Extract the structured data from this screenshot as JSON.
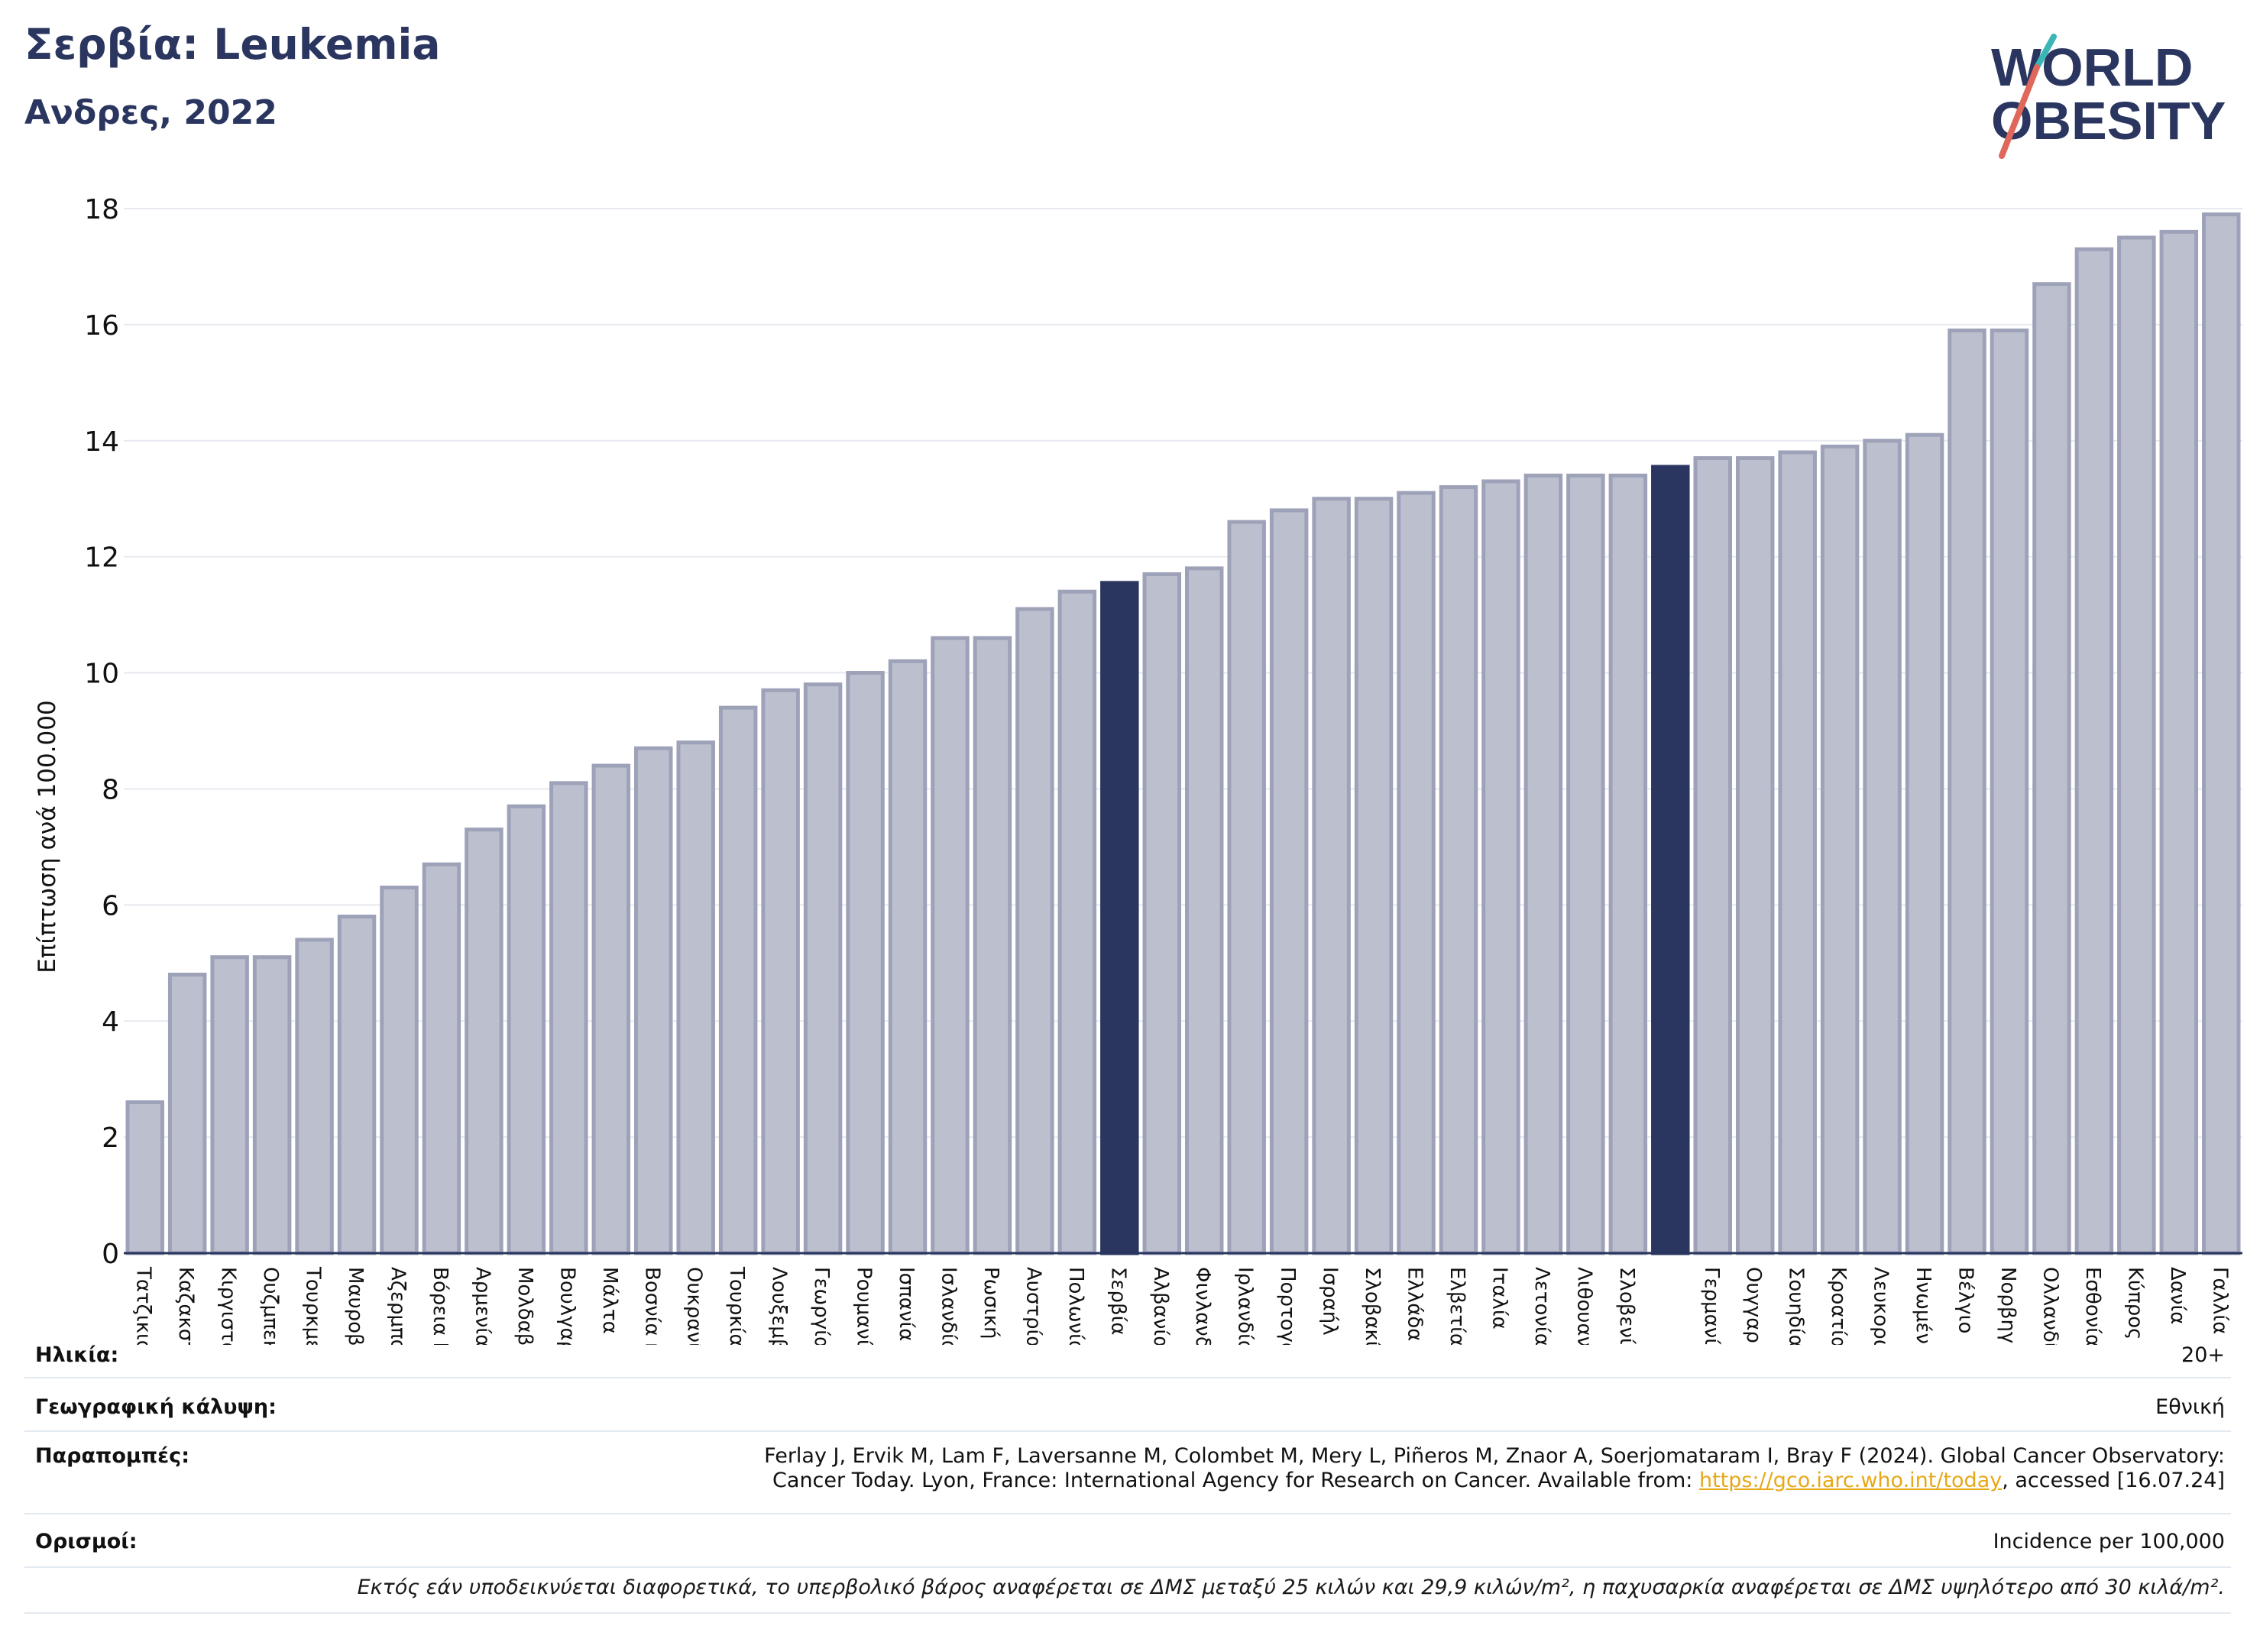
{
  "header": {
    "title": "Σερβία: Leukemia",
    "subtitle": "Ανδρες, 2022"
  },
  "logo": {
    "line1": "WORLD",
    "line2": "OBESITY"
  },
  "info": {
    "age_key": "Ηλικία:",
    "age_value": "20+",
    "coverage_key": "Γεωγραφική κάλυψη:",
    "coverage_value": "Εθνική",
    "refs_key": "Παραπομπές:",
    "refs_line1": "Ferlay J, Ervik M, Lam F, Laversanne M, Colombet M, Mery L, Piñeros M, Znaor A, Soerjomataram I, Bray F (2024). Global Cancer Observatory:",
    "refs_line2_pre": "Cancer Today. Lyon, France: International Agency for Research on Cancer. Available from: ",
    "refs_link": "https://gco.iarc.who.int/today",
    "refs_line2_post": ", accessed [16.07.24]",
    "defs_key": "Ορισμοί:",
    "defs_value": "Incidence per 100,000"
  },
  "footnote": "Εκτός εάν υποδεικνύεται διαφορετικά, το υπερβολικό βάρος αναφέρεται σε ΔΜΣ μεταξύ 25 κιλών και 29,9 κιλών/m², η παχυσαρκία αναφέρεται σε ΔΜΣ υψηλότερο από 30 κιλά/m².",
  "colors": {
    "bar": "#bcc0ce",
    "bar_edge": "#9da2b8",
    "highlight": "#2a365f",
    "grid": "#e6e9ef",
    "logo_teal": "#3bb6b6",
    "logo_coral": "#e0685a"
  },
  "chart_data": {
    "type": "bar",
    "ylabel": "Επίπτωση ανά 100.000",
    "ylim": [
      0,
      18
    ],
    "yticks": [
      0,
      2,
      4,
      6,
      8,
      10,
      12,
      14,
      16,
      18
    ],
    "grid": true,
    "categories": [
      "Τατζικιστάν",
      "Καζακστάν",
      "Κιργιστάν",
      "Ουζμπεκιστάν",
      "Τουρκμενιστάν",
      "Μαυροβούνιο",
      "Αζερμπαϊτζάν",
      "Βόρεια Μακεδονία",
      "Αρμενία",
      "Μολδαβία",
      "Βουλγαρία",
      "Μάλτα",
      "Βοσνία και Ερζεγοβίνη",
      "Ουκρανία",
      "Τουρκία",
      "Λουξεμβούργο",
      "Γεωργία",
      "Ρουμανία",
      "Ισπανία",
      "Ισλανδία",
      "Ρωσική Ομοσπονδία",
      "Αυστρία",
      "Πολωνία",
      "Σερβία",
      "Αλβανία",
      "Φινλανδία",
      "Ιρλανδία",
      "Πορτογαλία",
      "Ισραήλ",
      "Σλοβακία",
      "Ελλάδα",
      "Ελβετία",
      "Ιταλία",
      "Λετονία",
      "Λιθουανία",
      "Σλοβενία",
      "",
      "Γερμανία",
      "Ουγγαρία",
      "Σουηδία",
      "Κροατία",
      "Λευκορωσία",
      "Ηνωμένο Βασίλειο",
      "Βέλγιο",
      "Νορβηγία",
      "Ολλανδία",
      "Εσθονία",
      "Κύπρος",
      "Δανία",
      "Γαλλία"
    ],
    "values": [
      2.6,
      4.8,
      5.1,
      5.1,
      5.4,
      5.8,
      6.3,
      6.7,
      7.3,
      7.7,
      8.1,
      8.4,
      8.7,
      8.8,
      9.4,
      9.7,
      9.8,
      10.0,
      10.2,
      10.6,
      10.6,
      11.1,
      11.4,
      11.55,
      11.7,
      11.8,
      12.6,
      12.8,
      13.0,
      13.0,
      13.1,
      13.2,
      13.3,
      13.4,
      13.4,
      13.4,
      13.55,
      13.7,
      13.7,
      13.8,
      13.9,
      14.0,
      14.1,
      15.9,
      15.9,
      16.7,
      17.3,
      17.5,
      17.6,
      17.9
    ],
    "highlight_indices": [
      23,
      36
    ]
  }
}
